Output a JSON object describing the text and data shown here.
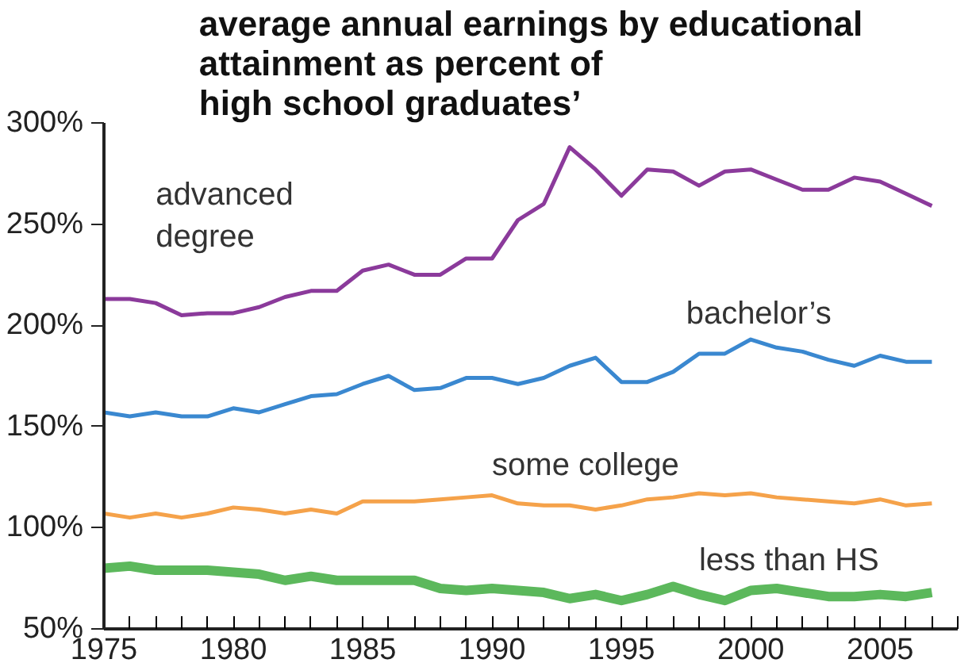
{
  "chart_data": {
    "type": "line",
    "title": "average annual earnings by educational\nattainment as percent of\nhigh school graduates’",
    "x": [
      1975,
      1976,
      1977,
      1978,
      1979,
      1980,
      1981,
      1982,
      1983,
      1984,
      1985,
      1986,
      1987,
      1988,
      1989,
      1990,
      1991,
      1992,
      1993,
      1994,
      1995,
      1996,
      1997,
      1998,
      1999,
      2000,
      2001,
      2002,
      2003,
      2004,
      2005,
      2006,
      2007
    ],
    "series": [
      {
        "name": "advanced\ndegree",
        "color": "#8b3a9b",
        "values": [
          213,
          213,
          211,
          205,
          206,
          206,
          209,
          214,
          217,
          217,
          227,
          230,
          225,
          225,
          233,
          233,
          252,
          260,
          288,
          277,
          264,
          277,
          276,
          269,
          276,
          277,
          272,
          267,
          267,
          273,
          271,
          265,
          259
        ]
      },
      {
        "name": "bachelor’s",
        "color": "#3a88d0",
        "values": [
          157,
          155,
          157,
          155,
          155,
          159,
          157,
          161,
          165,
          166,
          171,
          175,
          168,
          169,
          174,
          174,
          171,
          174,
          180,
          184,
          172,
          172,
          177,
          186,
          186,
          193,
          189,
          187,
          183,
          180,
          185,
          182,
          182
        ]
      },
      {
        "name": "some college",
        "color": "#f5a24a",
        "values": [
          107,
          105,
          107,
          105,
          107,
          110,
          109,
          107,
          109,
          107,
          113,
          113,
          113,
          114,
          115,
          116,
          112,
          111,
          111,
          109,
          111,
          114,
          115,
          117,
          116,
          117,
          115,
          114,
          113,
          112,
          114,
          111,
          112
        ]
      },
      {
        "name": "less than HS",
        "color": "#5cb85c",
        "values": [
          80,
          81,
          79,
          79,
          79,
          78,
          77,
          74,
          76,
          74,
          74,
          74,
          74,
          70,
          69,
          70,
          69,
          68,
          65,
          67,
          64,
          67,
          71,
          67,
          64,
          69,
          70,
          68,
          66,
          66,
          67,
          66,
          68
        ]
      }
    ],
    "xlim": [
      1975,
      2008
    ],
    "xticks": [
      1975,
      1980,
      1985,
      1990,
      1995,
      2000,
      2005
    ],
    "ylim": [
      50,
      300
    ],
    "yticks": [
      {
        "value": 50,
        "label": "50%"
      },
      {
        "value": 100,
        "label": "100%"
      },
      {
        "value": 150,
        "label": "150%"
      },
      {
        "value": 200,
        "label": "200%"
      },
      {
        "value": 250,
        "label": "250%"
      },
      {
        "value": 300,
        "label": "300%"
      }
    ],
    "grid": false,
    "legend": false,
    "marker": "none",
    "line_style": "solid"
  }
}
